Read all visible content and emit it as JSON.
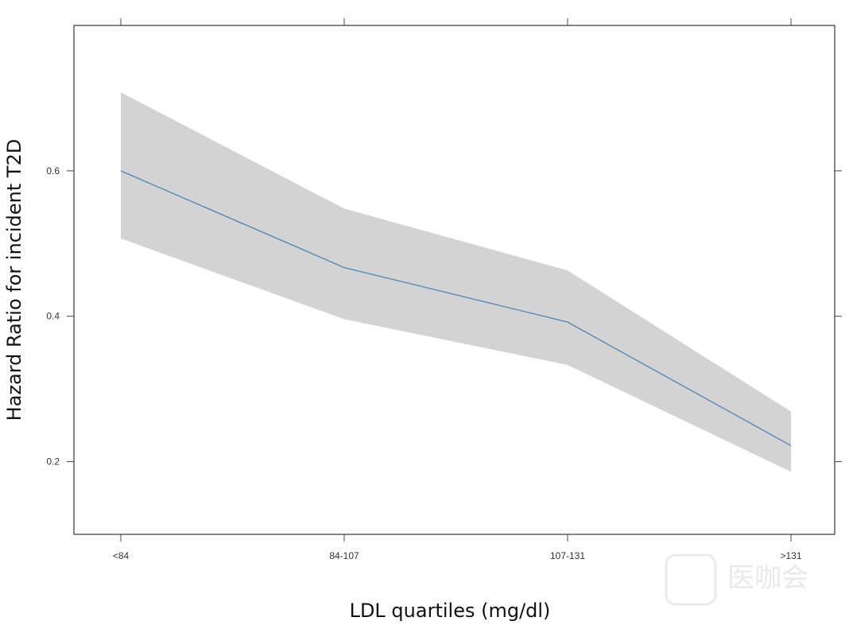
{
  "chart_data": {
    "type": "line",
    "title": "",
    "xlabel": "LDL quartiles (mg/dl)",
    "ylabel": "Hazard Ratio for incident T2D",
    "categories": [
      "<84",
      "84-107",
      "107-131",
      ">131"
    ],
    "series": [
      {
        "values": [
          0.6,
          0.467,
          0.392,
          0.222
        ],
        "color": "#4a86b8"
      }
    ],
    "confidence_band": {
      "upper": [
        0.708,
        0.548,
        0.463,
        0.269
      ],
      "lower": [
        0.507,
        0.396,
        0.333,
        0.186
      ],
      "color": "#d3d3d3"
    },
    "yticks": [
      0.2,
      0.4,
      0.6
    ],
    "ytick_labels": [
      "0.2",
      "0.4",
      "0.6"
    ],
    "ylim": [
      0.1,
      0.8
    ],
    "grid": false,
    "legend": "none"
  },
  "watermark": "医咖会"
}
